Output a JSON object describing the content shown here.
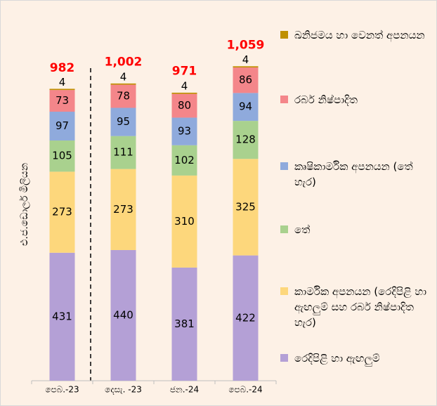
{
  "chart_data": {
    "type": "stacked_bar",
    "y_label": "එ.ජ.ඩොලර් මිලියන",
    "categories": [
      "පෙබ.-23",
      "දෙසැ. -23",
      "ජන.-24",
      "පෙබ.-24"
    ],
    "series": [
      {
        "name": "රෙදිපිළි හා ඇඟලුම්",
        "color": "#b4a0d6",
        "values": [
          431,
          440,
          381,
          422
        ]
      },
      {
        "name": "කාර්මික අපනයන (රෙදිපිළි හා ඇඟලුම් සහ රබර් නිෂ්පාදිත හැර)",
        "color": "#fdd77c",
        "values": [
          273,
          273,
          310,
          325
        ]
      },
      {
        "name": "තේ",
        "color": "#a9d18e",
        "values": [
          105,
          111,
          102,
          128
        ]
      },
      {
        "name": "කෘෂිකාර්මික අපනයන (තේ හැර)",
        "color": "#8faadc",
        "values": [
          97,
          95,
          93,
          94
        ]
      },
      {
        "name": "රබර් නිෂ්පාදිත",
        "color": "#f4868a",
        "values": [
          73,
          78,
          80,
          86
        ]
      },
      {
        "name": "ඛනිජමය හා වෙනත් අපනයන",
        "color": "#bf9000",
        "values": [
          4,
          4,
          4,
          4
        ]
      }
    ],
    "totals": [
      982,
      1002,
      971,
      1059
    ],
    "total_labels": [
      "982",
      "1,002",
      "971",
      "1,059"
    ],
    "total_color": "#ff0000",
    "ylim": [
      0,
      1100
    ]
  }
}
